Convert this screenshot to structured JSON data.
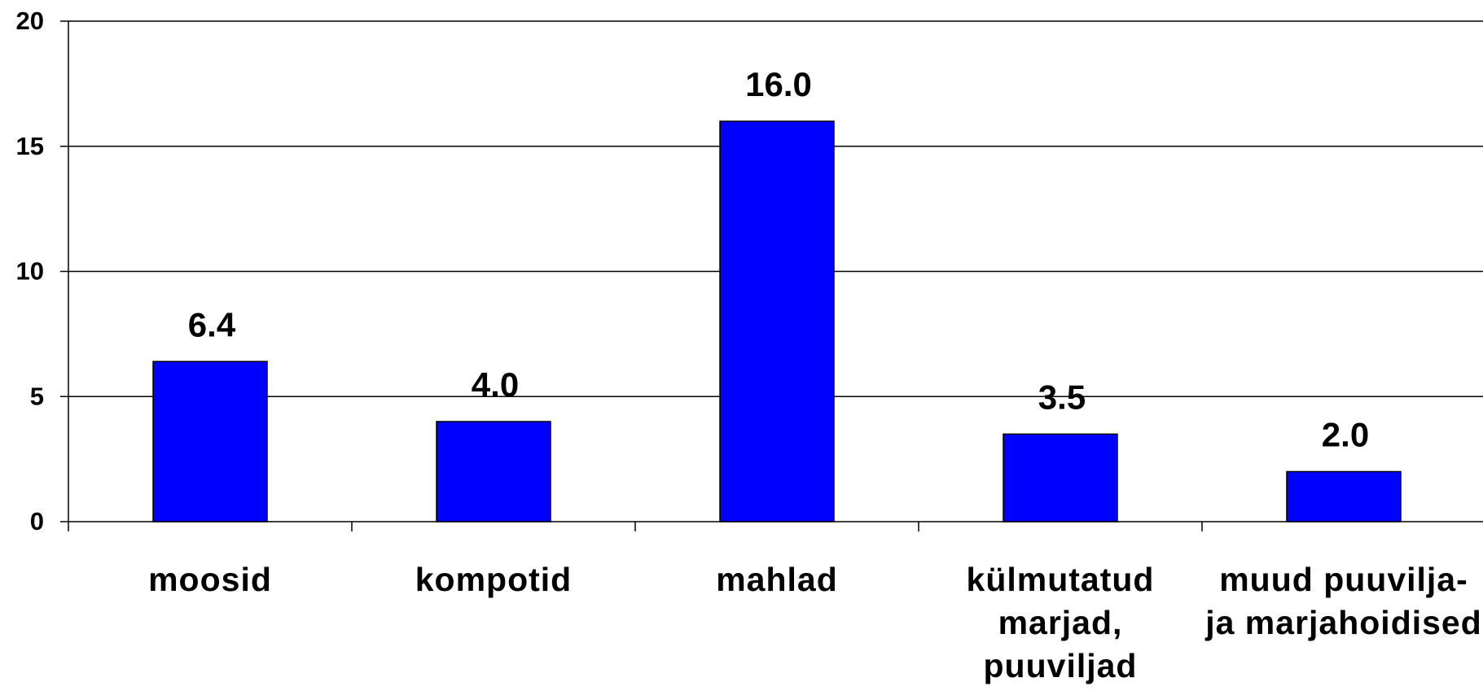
{
  "chart_data": {
    "type": "bar",
    "categories": [
      "moosid",
      "kompotid",
      "mahlad",
      "külmutatud marjad, puuviljad",
      "muud puuvilja- ja marjahoidised"
    ],
    "values": [
      6.4,
      4.0,
      16.0,
      3.5,
      2.0
    ],
    "value_labels": [
      "6.4",
      "4.0",
      "16.0",
      "3.5",
      "2.0"
    ],
    "color": "#0000ff",
    "ylim": [
      0,
      20
    ],
    "yticks": [
      0,
      5,
      10,
      15,
      20
    ],
    "grid": true
  }
}
